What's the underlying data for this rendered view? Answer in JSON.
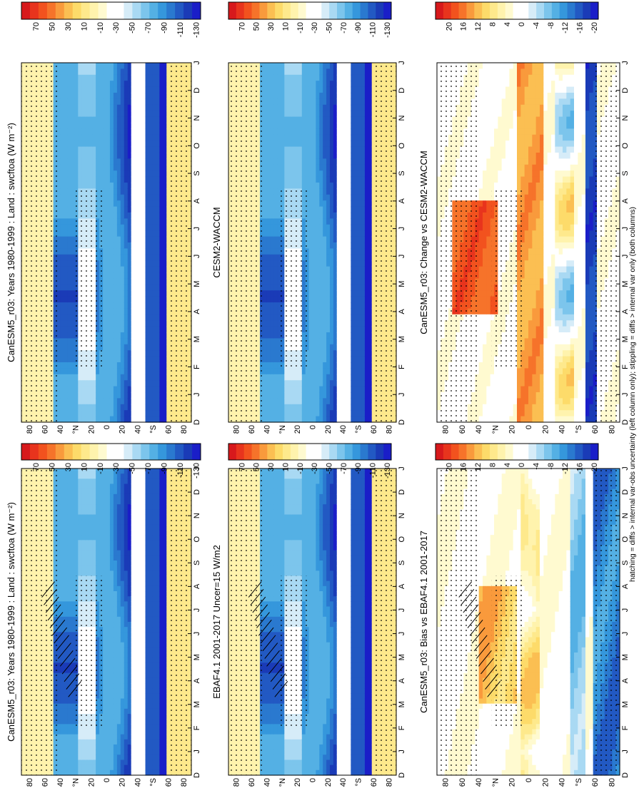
{
  "footnote": "hatching = diffs > internal var-obs uncertainty (left column only); stippling = diffs > internal var only (both columns)",
  "colors": {
    "scale_main": [
      "#d7191c",
      "#e8341d",
      "#f2521e",
      "#f6732a",
      "#f99a3c",
      "#fbbf52",
      "#fddb6a",
      "#fee98c",
      "#fff3ad",
      "#fffad0",
      "#ffffff",
      "#ffffff",
      "#d6ecf8",
      "#a9d9f3",
      "#7cc5ec",
      "#54b0e4",
      "#3597dc",
      "#2a79cf",
      "#2259c3",
      "#1a3bb7",
      "#1a1ec8"
    ],
    "scale_diff": [
      "#d7191c",
      "#e8341d",
      "#f2521e",
      "#f6732a",
      "#f99a3c",
      "#fbbf52",
      "#fddb6a",
      "#fee98c",
      "#fff3ad",
      "#fffad0",
      "#ffffff",
      "#ffffff",
      "#d6ecf8",
      "#a9d9f3",
      "#7cc5ec",
      "#54b0e4",
      "#3597dc",
      "#2a79cf",
      "#2259c3",
      "#1a3bb7",
      "#1a1ec8"
    ]
  },
  "chart_data": [
    {
      "type": "heatmap",
      "title": "CanESM5_r03: Years 1980-1999 : Land : swcftoa (W m⁻²)",
      "x_categories": [
        "D",
        "J",
        "F",
        "M",
        "A",
        "M",
        "J",
        "J",
        "A",
        "S",
        "O",
        "N",
        "D",
        "J"
      ],
      "y_ticks": [
        "80",
        "60",
        "40",
        "°N",
        "20",
        "0",
        "20",
        "40",
        "°S",
        "60",
        "80"
      ],
      "colorbar_labels": [
        "70",
        "50",
        "30",
        "10",
        "-10",
        "-30",
        "-50",
        "-70",
        "-90",
        "-110",
        "-130"
      ],
      "hatching": true,
      "stippling": true,
      "field": "main"
    },
    {
      "type": "heatmap",
      "title": "CanESM5_r03: Years 1980-1999 : Land : swcftoa (W m⁻²)",
      "x_categories": [
        "D",
        "J",
        "F",
        "M",
        "A",
        "M",
        "J",
        "J",
        "A",
        "S",
        "O",
        "N",
        "D",
        "J"
      ],
      "y_ticks": [
        "80",
        "60",
        "40",
        "°N",
        "20",
        "0",
        "20",
        "40",
        "°S",
        "60",
        "80"
      ],
      "colorbar_labels": [
        "70",
        "50",
        "30",
        "10",
        "-10",
        "-30",
        "-50",
        "-70",
        "-90",
        "-110",
        "-130"
      ],
      "hatching": false,
      "stippling": true,
      "field": "main"
    },
    {
      "type": "heatmap",
      "title": "EBAF4.1 2001-2017 Uncer=15 W/m2",
      "x_categories": [
        "D",
        "J",
        "F",
        "M",
        "A",
        "M",
        "J",
        "J",
        "A",
        "S",
        "O",
        "N",
        "D",
        "J"
      ],
      "y_ticks": [
        "80",
        "60",
        "40",
        "°N",
        "20",
        "0",
        "20",
        "40",
        "°S",
        "60",
        "80"
      ],
      "colorbar_labels": [
        "70",
        "50",
        "30",
        "10",
        "-10",
        "-30",
        "-50",
        "-70",
        "-90",
        "-110",
        "-130"
      ],
      "hatching": true,
      "stippling": true,
      "field": "main"
    },
    {
      "type": "heatmap",
      "title": "CESM2-WACCM",
      "x_categories": [
        "D",
        "J",
        "F",
        "M",
        "A",
        "M",
        "J",
        "J",
        "A",
        "S",
        "O",
        "N",
        "D",
        "J"
      ],
      "y_ticks": [
        "80",
        "60",
        "40",
        "°N",
        "20",
        "0",
        "20",
        "40",
        "°S",
        "60",
        "80"
      ],
      "colorbar_labels": [
        "70",
        "50",
        "30",
        "10",
        "-10",
        "-30",
        "-50",
        "-70",
        "-90",
        "-110",
        "-130"
      ],
      "hatching": false,
      "stippling": true,
      "field": "main"
    },
    {
      "type": "heatmap",
      "title": "CanESM5_r03: Bias vs EBAF4.1 2001-2017",
      "x_categories": [
        "D",
        "J",
        "F",
        "M",
        "A",
        "M",
        "J",
        "J",
        "A",
        "S",
        "O",
        "N",
        "D",
        "J"
      ],
      "y_ticks": [
        "80",
        "60",
        "40",
        "°N",
        "20",
        "0",
        "20",
        "40",
        "°S",
        "60",
        "80"
      ],
      "colorbar_labels": [
        "20",
        "16",
        "12",
        "8",
        "4",
        "0",
        "-4",
        "-8",
        "-12",
        "-16",
        "-20"
      ],
      "hatching": true,
      "stippling": true,
      "field": "diff"
    },
    {
      "type": "heatmap",
      "title": "CanESM5_r03: Change vs CESM2-WACCM",
      "x_categories": [
        "D",
        "J",
        "F",
        "M",
        "A",
        "M",
        "J",
        "J",
        "A",
        "S",
        "O",
        "N",
        "D",
        "J"
      ],
      "y_ticks": [
        "80",
        "60",
        "40",
        "°N",
        "20",
        "0",
        "20",
        "40",
        "°S",
        "60",
        "80"
      ],
      "colorbar_labels": [
        "20",
        "16",
        "12",
        "8",
        "4",
        "0",
        "-4",
        "-8",
        "-12",
        "-16",
        "-20"
      ],
      "hatching": false,
      "stippling": true,
      "field": "diff2"
    }
  ]
}
